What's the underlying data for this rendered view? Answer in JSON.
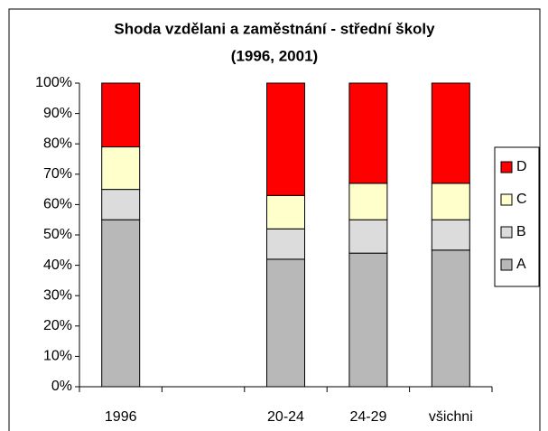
{
  "chart_data": {
    "type": "stacked_bar",
    "title": [
      "Shoda vzdělani a zaměstnání - střední školy",
      "(1996, 2001)"
    ],
    "categories": [
      "1996",
      null,
      "20-24",
      "24-29",
      "všichni"
    ],
    "series": [
      {
        "name": "A",
        "color": "#b8b8b8",
        "values": [
          55,
          null,
          42,
          44,
          45
        ]
      },
      {
        "name": "B",
        "color": "#dcdcdc",
        "values": [
          10,
          null,
          10,
          11,
          10
        ]
      },
      {
        "name": "C",
        "color": "#ffffcc",
        "values": [
          14,
          null,
          11,
          12,
          12
        ]
      },
      {
        "name": "D",
        "color": "#ff0000",
        "values": [
          21,
          null,
          37,
          33,
          33
        ]
      }
    ],
    "ylim": [
      0,
      100
    ],
    "yticks": [
      {
        "value": 0,
        "label": "0%"
      },
      {
        "value": 10,
        "label": "10%"
      },
      {
        "value": 20,
        "label": "20%"
      },
      {
        "value": 30,
        "label": "30%"
      },
      {
        "value": 40,
        "label": "40%"
      },
      {
        "value": 50,
        "label": "50%"
      },
      {
        "value": 60,
        "label": "60%"
      },
      {
        "value": 70,
        "label": "70%"
      },
      {
        "value": 80,
        "label": "80%"
      },
      {
        "value": 90,
        "label": "90%"
      },
      {
        "value": 100,
        "label": "100%"
      }
    ],
    "legend": "right"
  }
}
